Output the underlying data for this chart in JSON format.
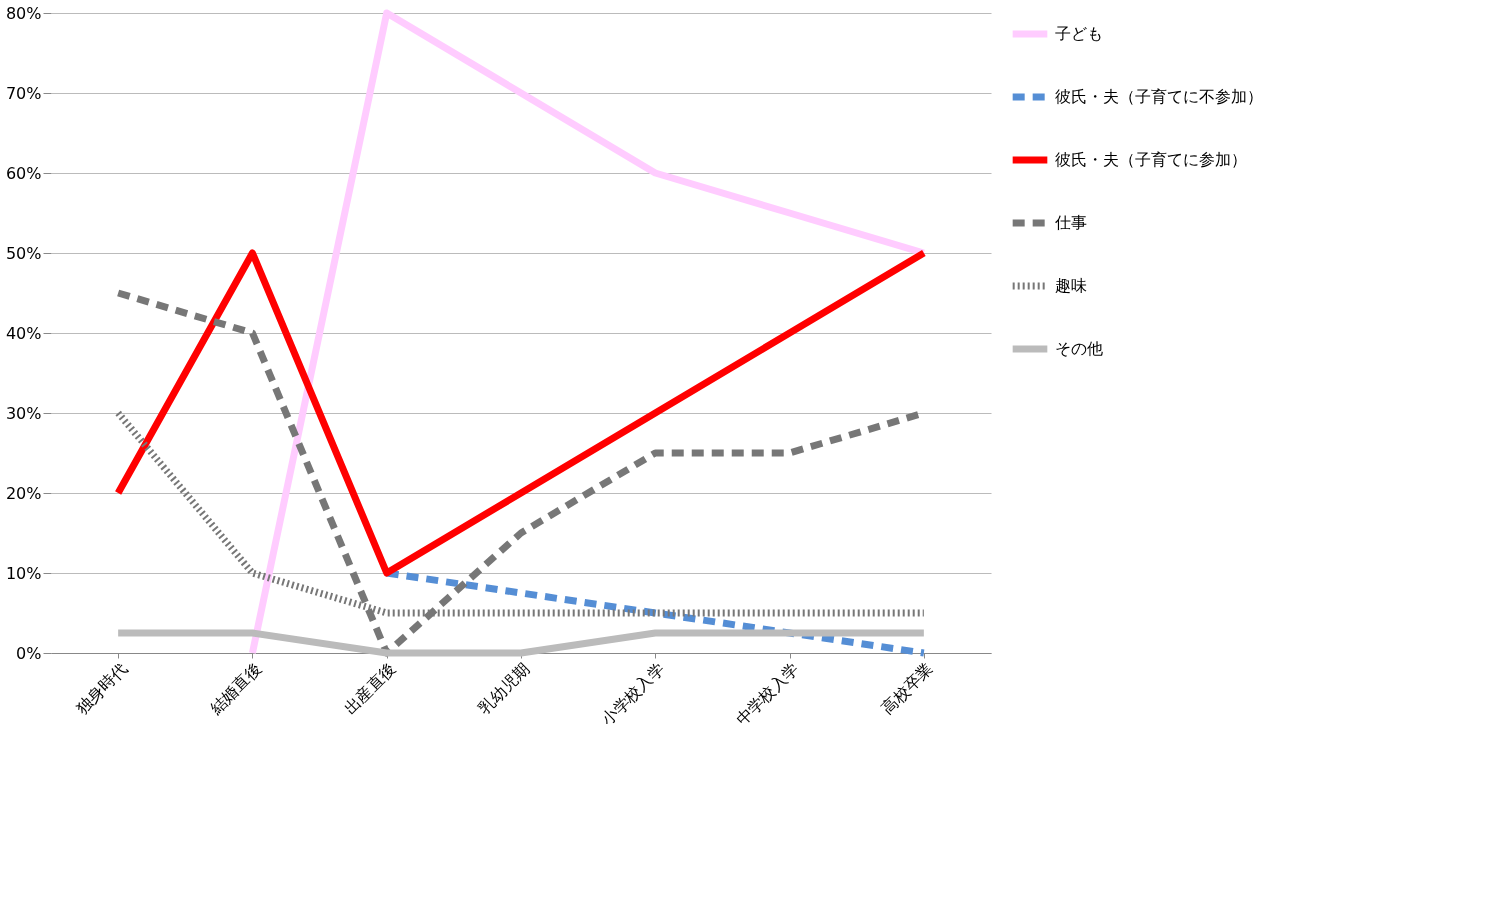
{
  "chart_data": {
    "type": "line",
    "categories": [
      "独身時代",
      "結婚直後",
      "出産直後",
      "乳幼児期",
      "小学校入学",
      "中学校入学",
      "高校卒業"
    ],
    "series": [
      {
        "name": "子ども",
        "color": "#ffccff",
        "line_style": "solid",
        "values": [
          null,
          0,
          80,
          70,
          60,
          55,
          50
        ]
      },
      {
        "name": "彼氏・夫（子育てに不参加）",
        "color": "#558ed5",
        "line_style": "dashed",
        "values": [
          null,
          null,
          10,
          7.5,
          5,
          2.5,
          0
        ]
      },
      {
        "name": "彼氏・夫（子育てに参加）",
        "color": "#ff0000",
        "line_style": "solid",
        "values": [
          20,
          50,
          10,
          20,
          30,
          40,
          50
        ]
      },
      {
        "name": "仕事",
        "color": "#777777",
        "line_style": "dashed",
        "values": [
          45,
          40,
          0,
          15,
          25,
          25,
          30
        ]
      },
      {
        "name": "趣味",
        "color": "#777777",
        "line_style": "dotted",
        "values": [
          30,
          10,
          5,
          5,
          5,
          5,
          5
        ]
      },
      {
        "name": "その他",
        "color": "#bbbbbb",
        "line_style": "solid",
        "values": [
          2.5,
          2.5,
          0,
          0,
          2.5,
          2.5,
          2.5
        ]
      }
    ],
    "ylim": [
      0,
      80
    ],
    "yticks": [
      {
        "value": 0,
        "label": "0%"
      },
      {
        "value": 10,
        "label": "10%"
      },
      {
        "value": 20,
        "label": "20%"
      },
      {
        "value": 30,
        "label": "30%"
      },
      {
        "value": 40,
        "label": "40%"
      },
      {
        "value": 50,
        "label": "50%"
      },
      {
        "value": 60,
        "label": "60%"
      },
      {
        "value": 70,
        "label": "70%"
      },
      {
        "value": 80,
        "label": "80%"
      }
    ],
    "grid": "y",
    "legend": "right",
    "marker": "none"
  }
}
